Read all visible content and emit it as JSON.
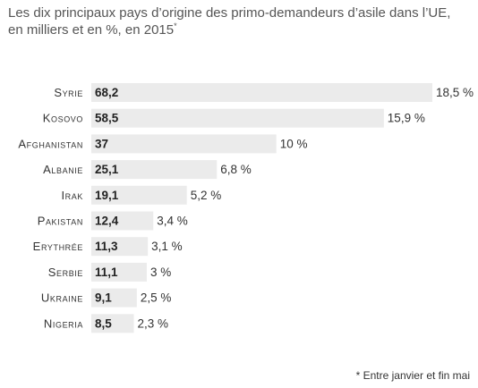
{
  "chart_data": {
    "type": "bar",
    "orientation": "horizontal",
    "title": "Les dix principaux pays d’origine des primo-demandeurs d’asile dans l’UE,",
    "subtitle": "en milliers et en %, en 2015",
    "subtitle_mark": "*",
    "categories": [
      "Syrie",
      "Kosovo",
      "Afghanistan",
      "Albanie",
      "Irak",
      "Pakistan",
      "Erythrée",
      "Serbie",
      "Ukraine",
      "Nigeria"
    ],
    "values": [
      68.2,
      58.5,
      37,
      25.1,
      19.1,
      12.4,
      11.3,
      11.1,
      9.1,
      8.5
    ],
    "value_labels": [
      "68,2",
      "58,5",
      "37",
      "25,1",
      "19,1",
      "12,4",
      "11,3",
      "11,1",
      "9,1",
      "8,5"
    ],
    "percentages": [
      18.5,
      15.9,
      10,
      6.8,
      5.2,
      3.4,
      3.1,
      3,
      2.5,
      2.3
    ],
    "percent_labels": [
      "18,5 %",
      "15,9 %",
      "10 %",
      "6,8 %",
      "5,2 %",
      "3,4 %",
      "3,1 %",
      "3 %",
      "2,5 %",
      "2,3 %"
    ],
    "xlim": [
      0,
      68.2
    ],
    "grid": false,
    "legend": "none",
    "bar_color": "#ebebeb"
  },
  "footnote": "* Entre janvier et fin mai"
}
